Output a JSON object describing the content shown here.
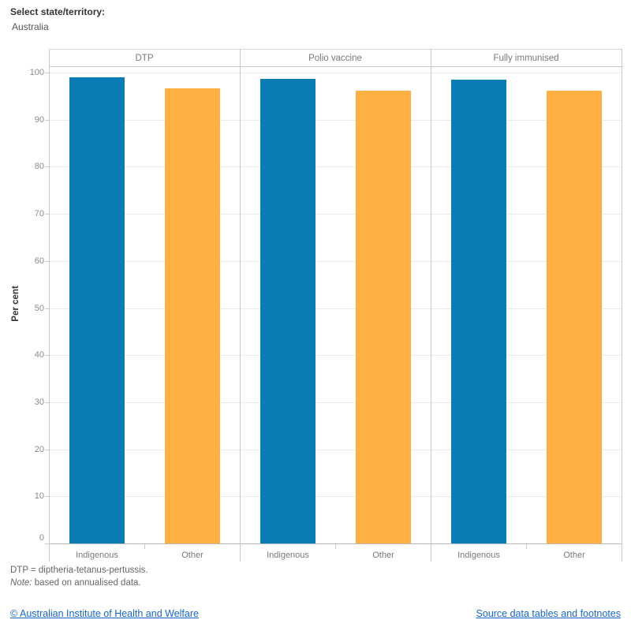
{
  "controls": {
    "select_label": "Select state/territory:",
    "selected_value": "Australia"
  },
  "chart_data": {
    "type": "bar",
    "title": "",
    "ylabel": "Per cent",
    "ylim": [
      0,
      100
    ],
    "yticks": [
      0,
      10,
      20,
      30,
      40,
      50,
      60,
      70,
      80,
      90,
      100
    ],
    "grid": true,
    "legend_position": "none",
    "categories": [
      "Indigenous",
      "Other"
    ],
    "category_colors": {
      "Indigenous": "#0c7cb4",
      "Other": "#feb042"
    },
    "panels": [
      {
        "label": "DTP",
        "values": [
          99.0,
          96.6
        ]
      },
      {
        "label": "Polio vaccine",
        "values": [
          98.6,
          96.1
        ]
      },
      {
        "label": "Fully immunised",
        "values": [
          98.5,
          96.2
        ]
      }
    ]
  },
  "footnotes": {
    "line1": "DTP = diptheria-tetanus-pertussis.",
    "note_label": "Note:",
    "note_text": "based on annualised data."
  },
  "footer": {
    "copyright_link": "© Australian Institute of Health and Welfare",
    "source_link": "Source data tables and footnotes",
    "link_color": "#1667c2"
  }
}
